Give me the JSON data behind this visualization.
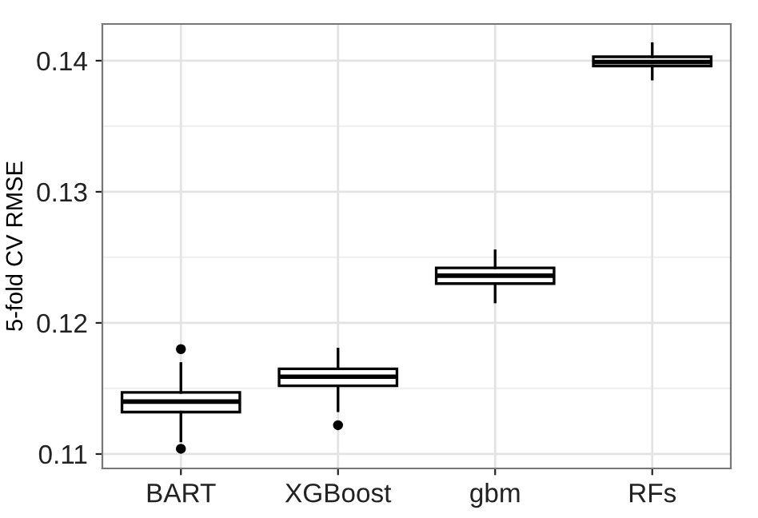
{
  "chart_data": {
    "type": "box",
    "ylabel": "5-fold CV RMSE",
    "categories": [
      "BART",
      "XGBoost",
      "gbm",
      "RFs"
    ],
    "boxes": [
      {
        "low": 0.111,
        "q1": 0.1132,
        "median": 0.114,
        "q3": 0.1147,
        "high": 0.1169,
        "outliers": [
          0.118,
          0.1104
        ]
      },
      {
        "low": 0.1133,
        "q1": 0.1152,
        "median": 0.1159,
        "q3": 0.1165,
        "high": 0.118,
        "outliers": [
          0.1122
        ]
      },
      {
        "low": 0.1216,
        "q1": 0.123,
        "median": 0.1236,
        "q3": 0.1242,
        "high": 0.1255
      },
      {
        "low": 0.1386,
        "q1": 0.1396,
        "median": 0.1399,
        "q3": 0.1403,
        "high": 0.1413
      }
    ],
    "color": "#000000",
    "ylim": [
      0.1089,
      0.1428
    ],
    "yticks": [
      0.11,
      0.12,
      0.13,
      0.14
    ],
    "grid": true
  }
}
